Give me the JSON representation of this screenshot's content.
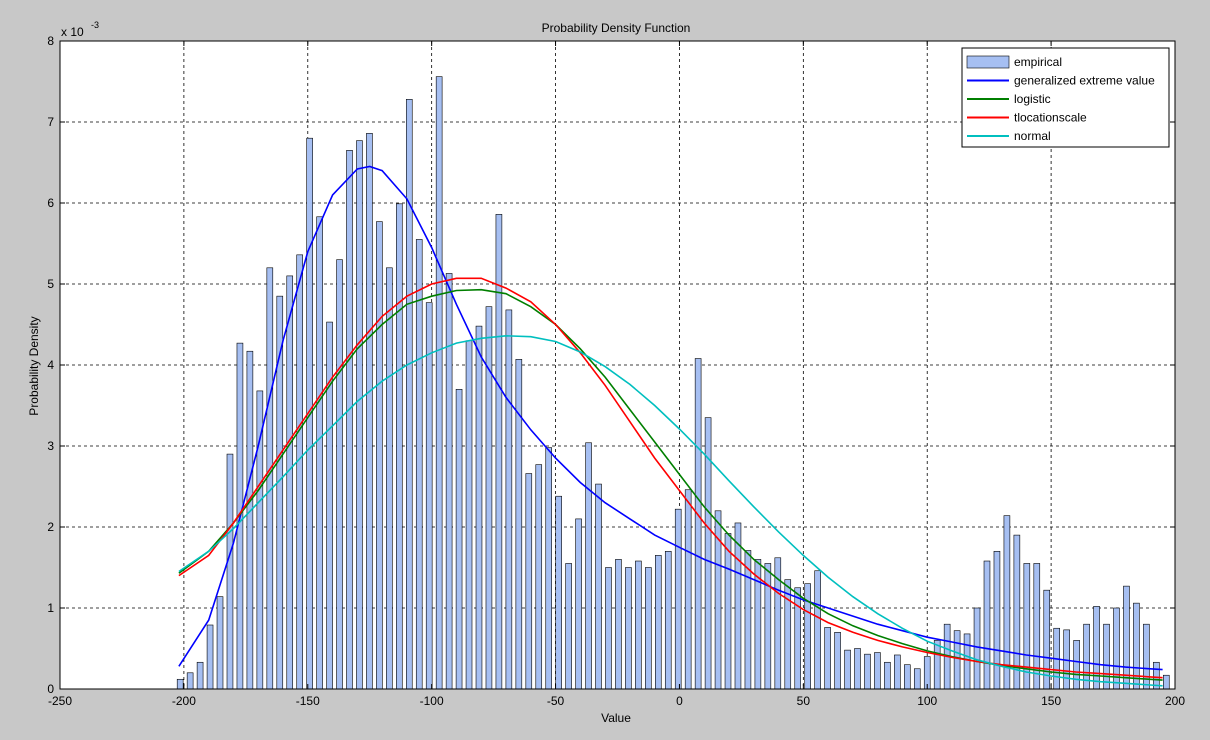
{
  "chart_data": {
    "type": "bar",
    "title": "Probability Density Function",
    "xlabel": "Value",
    "ylabel": "Probability Density",
    "y_exponent_label": "x 10",
    "y_exponent_power": "-3",
    "xlim": [
      -250,
      200
    ],
    "ylim": [
      0,
      8
    ],
    "x_ticks": [
      -250,
      -200,
      -150,
      -100,
      -50,
      0,
      50,
      100,
      150,
      200
    ],
    "y_ticks": [
      0,
      1,
      2,
      3,
      4,
      5,
      6,
      7,
      8
    ],
    "grid": true,
    "legend_position": "top-right",
    "bar_color": "#a6bff2",
    "bin_width": 2.4,
    "x_start": -201.5,
    "values": [
      0.12,
      0.2,
      0.33,
      0.79,
      1.14,
      2.9,
      4.27,
      4.17,
      3.68,
      5.2,
      4.85,
      5.1,
      5.36,
      6.8,
      5.83,
      4.53,
      5.3,
      6.65,
      6.77,
      6.86,
      5.77,
      5.2,
      5.99,
      7.28,
      5.55,
      4.77,
      7.56,
      5.13,
      3.7,
      4.3,
      4.48,
      4.72,
      5.86,
      4.68,
      4.07,
      2.66,
      2.77,
      2.98,
      2.38,
      1.55,
      2.1,
      3.04,
      2.53,
      1.5,
      1.6,
      1.5,
      1.58,
      1.5,
      1.65,
      1.7,
      2.22,
      2.46,
      4.08,
      3.35,
      2.2,
      1.92,
      2.05,
      1.71,
      1.6,
      1.55,
      1.62,
      1.35,
      1.25,
      1.3,
      1.46,
      0.76,
      0.7,
      0.48,
      0.5,
      0.43,
      0.45,
      0.33,
      0.42,
      0.3,
      0.25,
      0.4,
      0.6,
      0.8,
      0.72,
      0.68,
      1.0,
      1.58,
      1.7,
      2.14,
      1.9,
      1.55,
      1.55,
      1.22,
      0.75,
      0.73,
      0.6,
      0.8,
      1.02,
      0.8,
      1.0,
      1.27,
      1.06,
      0.8,
      0.33,
      0.17
    ],
    "series": [
      {
        "name": "empirical",
        "color": "#a6bff2"
      },
      {
        "name": "generalized extreme value",
        "color": "#0000ff",
        "x": [
          -202,
          -190,
          -180,
          -170,
          -160,
          -150,
          -140,
          -130,
          -125,
          -120,
          -110,
          -100,
          -90,
          -80,
          -70,
          -60,
          -50,
          -40,
          -30,
          -20,
          -10,
          0,
          10,
          20,
          30,
          40,
          50,
          60,
          70,
          80,
          90,
          100,
          110,
          120,
          130,
          140,
          150,
          160,
          170,
          180,
          190,
          195
        ],
        "y": [
          0.28,
          0.85,
          1.8,
          3.0,
          4.3,
          5.4,
          6.1,
          6.42,
          6.45,
          6.4,
          6.05,
          5.45,
          4.75,
          4.1,
          3.6,
          3.2,
          2.85,
          2.55,
          2.3,
          2.1,
          1.9,
          1.75,
          1.6,
          1.48,
          1.35,
          1.22,
          1.1,
          1.0,
          0.9,
          0.8,
          0.72,
          0.64,
          0.58,
          0.52,
          0.47,
          0.42,
          0.38,
          0.34,
          0.3,
          0.27,
          0.25,
          0.24
        ]
      },
      {
        "name": "logistic",
        "color": "#007f00",
        "x": [
          -202,
          -190,
          -180,
          -170,
          -160,
          -150,
          -140,
          -130,
          -120,
          -110,
          -100,
          -90,
          -80,
          -70,
          -60,
          -50,
          -40,
          -30,
          -20,
          -10,
          0,
          10,
          20,
          30,
          40,
          50,
          60,
          70,
          80,
          90,
          100,
          110,
          120,
          130,
          140,
          150,
          160,
          170,
          180,
          190,
          195
        ],
        "y": [
          1.43,
          1.7,
          2.05,
          2.45,
          2.9,
          3.35,
          3.8,
          4.2,
          4.5,
          4.75,
          4.85,
          4.92,
          4.93,
          4.88,
          4.72,
          4.5,
          4.2,
          3.85,
          3.45,
          3.05,
          2.65,
          2.25,
          1.9,
          1.6,
          1.35,
          1.12,
          0.93,
          0.78,
          0.66,
          0.56,
          0.47,
          0.4,
          0.34,
          0.29,
          0.25,
          0.21,
          0.18,
          0.16,
          0.14,
          0.12,
          0.11
        ]
      },
      {
        "name": "tlocationscale",
        "color": "#ff0000",
        "x": [
          -202,
          -190,
          -180,
          -170,
          -160,
          -150,
          -140,
          -130,
          -120,
          -110,
          -100,
          -90,
          -80,
          -70,
          -60,
          -50,
          -40,
          -30,
          -20,
          -10,
          0,
          10,
          20,
          30,
          40,
          50,
          60,
          70,
          80,
          90,
          100,
          110,
          120,
          130,
          140,
          150,
          160,
          170,
          180,
          190,
          195
        ],
        "y": [
          1.4,
          1.65,
          2.05,
          2.5,
          2.95,
          3.4,
          3.85,
          4.25,
          4.6,
          4.85,
          5.0,
          5.07,
          5.07,
          4.95,
          4.78,
          4.5,
          4.15,
          3.75,
          3.3,
          2.85,
          2.45,
          2.05,
          1.7,
          1.42,
          1.18,
          0.98,
          0.82,
          0.7,
          0.6,
          0.52,
          0.45,
          0.39,
          0.34,
          0.3,
          0.27,
          0.24,
          0.21,
          0.19,
          0.17,
          0.15,
          0.14
        ]
      },
      {
        "name": "normal",
        "color": "#00bfbf",
        "x": [
          -202,
          -190,
          -180,
          -170,
          -160,
          -150,
          -140,
          -130,
          -120,
          -110,
          -100,
          -90,
          -80,
          -70,
          -60,
          -50,
          -40,
          -30,
          -20,
          -10,
          0,
          10,
          20,
          30,
          40,
          50,
          60,
          70,
          80,
          90,
          100,
          110,
          120,
          130,
          140,
          150,
          160,
          170,
          180,
          190,
          195
        ],
        "y": [
          1.45,
          1.7,
          1.98,
          2.3,
          2.62,
          2.95,
          3.25,
          3.55,
          3.8,
          4.0,
          4.15,
          4.27,
          4.33,
          4.36,
          4.35,
          4.29,
          4.16,
          3.98,
          3.76,
          3.5,
          3.21,
          2.9,
          2.57,
          2.25,
          1.94,
          1.65,
          1.38,
          1.14,
          0.93,
          0.75,
          0.59,
          0.47,
          0.36,
          0.28,
          0.21,
          0.16,
          0.12,
          0.09,
          0.07,
          0.05,
          0.04
        ]
      }
    ]
  }
}
